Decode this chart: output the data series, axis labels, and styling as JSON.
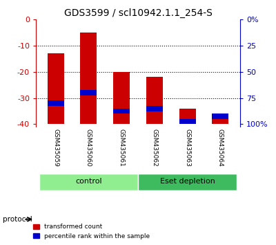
{
  "title": "GDS3599 / scl10942.1.1_254-S",
  "samples": [
    "GSM435059",
    "GSM435060",
    "GSM435061",
    "GSM435062",
    "GSM435063",
    "GSM435064"
  ],
  "red_bar_tops": [
    -13,
    -5,
    -20,
    -22,
    -34,
    -38
  ],
  "red_bar_bottoms": [
    -40,
    -40,
    -40,
    -40,
    -40,
    -40
  ],
  "blue_bar_tops": [
    -31,
    -27,
    -34,
    -33,
    -38,
    -36
  ],
  "blue_bar_bottoms": [
    -33,
    -29,
    -36,
    -35,
    -40,
    -38
  ],
  "ylim_left": [
    -41,
    0
  ],
  "yticks_left": [
    0,
    -10,
    -20,
    -30,
    -40
  ],
  "ytick_labels_left": [
    "0",
    "-10",
    "-20",
    "-30",
    "-40"
  ],
  "ytick_labels_right": [
    "0%",
    "25",
    "50",
    "75",
    "100%"
  ],
  "groups": [
    {
      "label": "control",
      "indices": [
        0,
        1,
        2
      ],
      "color": "#90ee90"
    },
    {
      "label": "Eset depletion",
      "indices": [
        3,
        4,
        5
      ],
      "color": "#3dbb5e"
    }
  ],
  "protocol_label": "protocol",
  "legend_red": "transformed count",
  "legend_blue": "percentile rank within the sample",
  "red_color": "#cc0000",
  "blue_color": "#0000cc",
  "bar_width": 0.5,
  "grid_color": "black",
  "left_axis_color": "#cc0000",
  "right_axis_color": "#0000cc",
  "tick_area_color": "#d0d0d0"
}
